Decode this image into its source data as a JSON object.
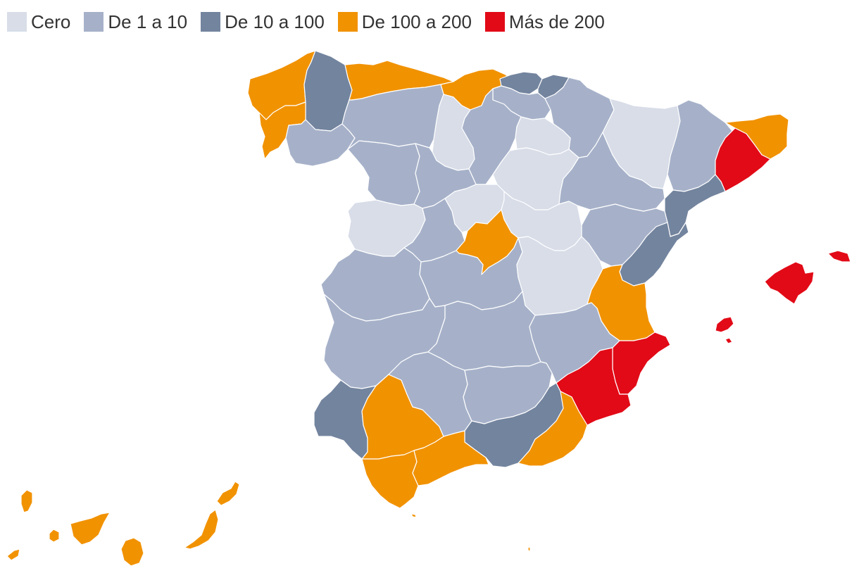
{
  "legend": [
    {
      "label": "Cero",
      "color": "#d8dde8"
    },
    {
      "label": "De 1 a 10",
      "color": "#a6b1c9"
    },
    {
      "label": "De 10 a 100",
      "color": "#73849e"
    },
    {
      "label": "De 100 a 200",
      "color": "#f19201"
    },
    {
      "label": "Más de 200",
      "color": "#e20a17"
    }
  ],
  "regions": {
    "lugo": "De 10 a 100",
    "a-coruna": "De 100 a 200",
    "pontevedra": "De 100 a 200",
    "ourense": "De 1 a 10",
    "asturias": "De 100 a 200",
    "cantabria": "De 100 a 200",
    "bizkaia": "De 10 a 100",
    "gipuzkoa": "De 10 a 100",
    "alava": "De 1 a 10",
    "navarra": "De 1 a 10",
    "leon": "De 1 a 10",
    "palencia": "Cero",
    "burgos": "De 1 a 10",
    "la-rioja": "Cero",
    "zamora": "De 1 a 10",
    "valladolid": "De 1 a 10",
    "soria": "Cero",
    "huesca": "Cero",
    "lleida": "De 1 a 10",
    "girona": "De 100 a 200",
    "barcelona": "Más de 200",
    "tarragona": "De 10 a 100",
    "zaragoza": "De 1 a 10",
    "teruel": "De 1 a 10",
    "castellon": "De 10 a 100",
    "salamanca": "Cero",
    "avila": "De 1 a 10",
    "segovia": "Cero",
    "guadalajara": "Cero",
    "madrid": "De 100 a 200",
    "caceres": "De 1 a 10",
    "toledo": "De 1 a 10",
    "cuenca": "Cero",
    "valencia": "De 100 a 200",
    "badajoz": "De 1 a 10",
    "ciudad-real": "De 1 a 10",
    "albacete": "De 1 a 10",
    "alicante": "Más de 200",
    "murcia": "Más de 200",
    "huelva": "De 10 a 100",
    "sevilla": "De 100 a 200",
    "cordoba": "De 1 a 10",
    "jaen": "De 1 a 10",
    "granada": "De 10 a 100",
    "almeria": "De 100 a 200",
    "cadiz": "De 100 a 200",
    "malaga": "De 100 a 200",
    "mallorca": "Más de 200",
    "menorca": "Más de 200",
    "ibiza": "Más de 200",
    "canarias-tenerife": "De 100 a 200",
    "canarias-las-palmas": "De 100 a 200"
  }
}
